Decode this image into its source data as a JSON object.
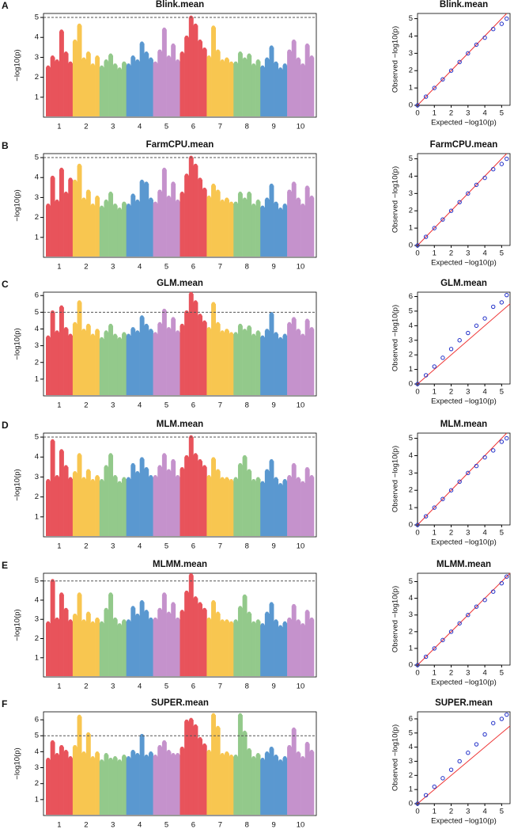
{
  "chart_data": [
    {
      "type": "manhattan",
      "panel": "A",
      "title": "Blink.mean",
      "ylabel": "−log10(p)",
      "ylim": [
        0,
        5.2
      ],
      "yticks": [
        1,
        2,
        3,
        4,
        5
      ],
      "threshold": 5,
      "categories": [
        "1",
        "2",
        "3",
        "4",
        "5",
        "6",
        "7",
        "8",
        "9",
        "10"
      ],
      "colors": [
        "#e8535b",
        "#f8c650",
        "#93c98b",
        "#5a98d0",
        "#c592cc",
        "#e8535b",
        "#f8c650",
        "#93c98b",
        "#5a98d0",
        "#c592cc"
      ],
      "values": [
        [
          2.5,
          3,
          2.8,
          4.3,
          3.2,
          2.7
        ],
        [
          3.8,
          4.6,
          2.9,
          3.2,
          2.6,
          3
        ],
        [
          2.5,
          2.8,
          3.1,
          2.6,
          2.4,
          2.7
        ],
        [
          2.6,
          3,
          2.8,
          3.7,
          3.2,
          2.9
        ],
        [
          2.7,
          3.3,
          4.4,
          3,
          3.6,
          2.8
        ],
        [
          3.2,
          4,
          5,
          4.6,
          3.8,
          3.4
        ],
        [
          3,
          4.5,
          3.3,
          2.8,
          2.9,
          2.7
        ],
        [
          2.7,
          3.2,
          2.9,
          3.1,
          2.6,
          2.8
        ],
        [
          2.5,
          2.9,
          3.5,
          2.7,
          2.4,
          2.6
        ],
        [
          3.3,
          3.8,
          2.9,
          2.6,
          3.6,
          3
        ]
      ]
    },
    {
      "type": "qq",
      "title": "Blink.mean",
      "xlabel": "Expected −log10(p)",
      "ylabel": "Observed −log10(p)",
      "xlim": [
        0,
        5.5
      ],
      "ylim": [
        0,
        5.3
      ],
      "xticks": [
        0,
        1,
        2,
        3,
        4,
        5
      ],
      "yticks": [
        0,
        1,
        2,
        3,
        4,
        5
      ],
      "x": [
        0,
        0.5,
        1,
        1.5,
        2,
        2.5,
        3,
        3.5,
        4,
        4.5,
        5,
        5.3
      ],
      "y": [
        0,
        0.5,
        1,
        1.5,
        2,
        2.5,
        3,
        3.5,
        3.9,
        4.4,
        4.7,
        5
      ]
    },
    {
      "type": "manhattan",
      "panel": "B",
      "title": "FarmCPU.mean",
      "ylabel": "−log10(p)",
      "ylim": [
        0,
        5.2
      ],
      "yticks": [
        1,
        2,
        3,
        4,
        5
      ],
      "threshold": 5,
      "categories": [
        "1",
        "2",
        "3",
        "4",
        "5",
        "6",
        "7",
        "8",
        "9",
        "10"
      ],
      "colors": [
        "#e8535b",
        "#f8c650",
        "#93c98b",
        "#5a98d0",
        "#c592cc",
        "#e8535b",
        "#f8c650",
        "#93c98b",
        "#5a98d0",
        "#c592cc"
      ],
      "values": [
        [
          2.6,
          4,
          2.8,
          4.4,
          3.2,
          3.9
        ],
        [
          3.8,
          4.6,
          2.9,
          3.3,
          2.6,
          3
        ],
        [
          2.5,
          2.8,
          3.2,
          2.6,
          2.4,
          2.7
        ],
        [
          2.6,
          3.1,
          2.8,
          3.8,
          3.7,
          2.9
        ],
        [
          2.7,
          3.3,
          4.4,
          3,
          3.7,
          2.8
        ],
        [
          3.2,
          4.1,
          5,
          4.6,
          3.9,
          3.4
        ],
        [
          3,
          3.6,
          3.3,
          2.8,
          2.9,
          2.7
        ],
        [
          2.7,
          3.2,
          2.9,
          3.2,
          2.6,
          2.8
        ],
        [
          2.5,
          2.9,
          3.6,
          2.7,
          2.4,
          2.6
        ],
        [
          3.3,
          3.7,
          2.9,
          2.6,
          3.5,
          3
        ]
      ]
    },
    {
      "type": "qq",
      "title": "FarmCPU.mean",
      "xlabel": "Expected −log10(p)",
      "ylabel": "Observed −log10(p)",
      "xlim": [
        0,
        5.5
      ],
      "ylim": [
        0,
        5.3
      ],
      "xticks": [
        0,
        1,
        2,
        3,
        4,
        5
      ],
      "yticks": [
        0,
        1,
        2,
        3,
        4,
        5
      ],
      "x": [
        0,
        0.5,
        1,
        1.5,
        2,
        2.5,
        3,
        3.5,
        4,
        4.5,
        5,
        5.3
      ],
      "y": [
        0,
        0.5,
        1,
        1.5,
        2,
        2.5,
        3,
        3.5,
        3.9,
        4.4,
        4.7,
        5
      ]
    },
    {
      "type": "manhattan",
      "panel": "C",
      "title": "GLM.mean",
      "ylabel": "−log10(p)",
      "ylim": [
        0,
        6.2
      ],
      "yticks": [
        1,
        2,
        3,
        4,
        5,
        6
      ],
      "threshold": 5,
      "categories": [
        "1",
        "2",
        "3",
        "4",
        "5",
        "6",
        "7",
        "8",
        "9",
        "10"
      ],
      "colors": [
        "#e8535b",
        "#f8c650",
        "#93c98b",
        "#5a98d0",
        "#c592cc",
        "#e8535b",
        "#f8c650",
        "#93c98b",
        "#5a98d0",
        "#c592cc"
      ],
      "values": [
        [
          3.5,
          5,
          3.8,
          5.3,
          4,
          3.6
        ],
        [
          4.3,
          5.6,
          3.9,
          4.2,
          3.6,
          3.9
        ],
        [
          3.4,
          3.8,
          4.2,
          3.6,
          3.4,
          3.7
        ],
        [
          3.6,
          4,
          3.8,
          4.7,
          4.2,
          3.9
        ],
        [
          3.7,
          4.3,
          5.1,
          4,
          4.6,
          3.8
        ],
        [
          4.2,
          5,
          6.1,
          5.6,
          4.8,
          4.4
        ],
        [
          4,
          5.5,
          4.3,
          3.8,
          3.9,
          3.7
        ],
        [
          3.7,
          4.2,
          3.9,
          4.1,
          3.6,
          3.8
        ],
        [
          3.5,
          3.9,
          4.9,
          3.7,
          3.4,
          3.6
        ],
        [
          4.3,
          4.6,
          3.9,
          3.6,
          4.5,
          4
        ]
      ]
    },
    {
      "type": "qq",
      "title": "GLM.mean",
      "xlabel": "Expected −log10(p)",
      "ylabel": "Observed −log10(p)",
      "xlim": [
        0,
        5.5
      ],
      "ylim": [
        0,
        6.3
      ],
      "xticks": [
        0,
        1,
        2,
        3,
        4,
        5
      ],
      "yticks": [
        0,
        1,
        2,
        3,
        4,
        5,
        6
      ],
      "x": [
        0,
        0.5,
        1,
        1.5,
        2,
        2.5,
        3,
        3.5,
        4,
        4.5,
        5,
        5.3
      ],
      "y": [
        0,
        0.6,
        1.2,
        1.8,
        2.4,
        3,
        3.5,
        4,
        4.5,
        5.3,
        5.6,
        6.1
      ]
    },
    {
      "type": "manhattan",
      "panel": "D",
      "title": "MLM.mean",
      "ylabel": "−log10(p)",
      "ylim": [
        0,
        5.2
      ],
      "yticks": [
        1,
        2,
        3,
        4,
        5
      ],
      "threshold": 5,
      "categories": [
        "1",
        "2",
        "3",
        "4",
        "5",
        "6",
        "7",
        "8",
        "9",
        "10"
      ],
      "colors": [
        "#e8535b",
        "#f8c650",
        "#93c98b",
        "#5a98d0",
        "#c592cc",
        "#e8535b",
        "#f8c650",
        "#93c98b",
        "#5a98d0",
        "#c592cc"
      ],
      "values": [
        [
          2.8,
          4.8,
          3,
          4.3,
          3.5,
          2.9
        ],
        [
          3.2,
          4.1,
          2.9,
          3.3,
          2.8,
          3
        ],
        [
          2.8,
          3.5,
          4.1,
          3,
          2.7,
          2.9
        ],
        [
          2.9,
          3.6,
          3.2,
          3.9,
          3.4,
          3
        ],
        [
          3,
          3.5,
          4.1,
          3.3,
          3.8,
          3
        ],
        [
          3.4,
          4,
          5,
          4.1,
          3.8,
          3.5
        ],
        [
          3,
          3.9,
          3.3,
          2.9,
          2.9,
          2.8
        ],
        [
          2.9,
          3.6,
          4,
          3.3,
          2.8,
          2.9
        ],
        [
          2.7,
          3.3,
          3.8,
          2.9,
          2.6,
          2.8
        ],
        [
          3,
          3.6,
          2.9,
          2.7,
          3.4,
          3
        ]
      ]
    },
    {
      "type": "qq",
      "title": "MLM.mean",
      "xlabel": "Expected −log10(p)",
      "ylabel": "Observed −log10(p)",
      "xlim": [
        0,
        5.5
      ],
      "ylim": [
        0,
        5.3
      ],
      "xticks": [
        0,
        1,
        2,
        3,
        4,
        5
      ],
      "yticks": [
        0,
        1,
        2,
        3,
        4,
        5
      ],
      "x": [
        0,
        0.5,
        1,
        1.5,
        2,
        2.5,
        3,
        3.5,
        4,
        4.5,
        5,
        5.3
      ],
      "y": [
        0,
        0.5,
        1,
        1.5,
        2,
        2.5,
        3,
        3.4,
        3.9,
        4.3,
        4.8,
        5
      ]
    },
    {
      "type": "manhattan",
      "panel": "E",
      "title": "MLMM.mean",
      "ylabel": "−log10(p)",
      "ylim": [
        0,
        5.4
      ],
      "yticks": [
        1,
        2,
        3,
        4,
        5
      ],
      "threshold": 5,
      "categories": [
        "1",
        "2",
        "3",
        "4",
        "5",
        "6",
        "7",
        "8",
        "9",
        "10"
      ],
      "colors": [
        "#e8535b",
        "#f8c650",
        "#93c98b",
        "#5a98d0",
        "#c592cc",
        "#e8535b",
        "#f8c650",
        "#93c98b",
        "#5a98d0",
        "#c592cc"
      ],
      "values": [
        [
          2.8,
          5,
          3,
          4.3,
          3.5,
          2.9
        ],
        [
          3.2,
          4.3,
          2.9,
          3.3,
          2.8,
          3
        ],
        [
          2.8,
          3.5,
          4.3,
          3,
          2.7,
          2.9
        ],
        [
          2.9,
          3.6,
          3.2,
          3.9,
          3.4,
          3
        ],
        [
          3,
          3.5,
          4.3,
          3.3,
          3.8,
          3
        ],
        [
          3.4,
          4.4,
          5.3,
          4.1,
          3.8,
          3.5
        ],
        [
          3,
          3.9,
          3.3,
          2.9,
          2.9,
          2.8
        ],
        [
          2.9,
          3.6,
          4.2,
          3.3,
          2.8,
          2.9
        ],
        [
          2.7,
          3.3,
          3.8,
          2.9,
          2.6,
          2.8
        ],
        [
          3,
          3.7,
          2.9,
          2.7,
          3.4,
          3
        ]
      ]
    },
    {
      "type": "qq",
      "title": "MLMM.mean",
      "xlabel": "Expected −log10(p)",
      "ylabel": "Observed −log10(p)",
      "xlim": [
        0,
        5.5
      ],
      "ylim": [
        0,
        5.5
      ],
      "xticks": [
        0,
        1,
        2,
        3,
        4,
        5
      ],
      "yticks": [
        0,
        1,
        2,
        3,
        4,
        5
      ],
      "x": [
        0,
        0.5,
        1,
        1.5,
        2,
        2.5,
        3,
        3.5,
        4,
        4.5,
        5,
        5.3
      ],
      "y": [
        0,
        0.5,
        1,
        1.5,
        2,
        2.5,
        3,
        3.5,
        3.9,
        4.4,
        4.9,
        5.3
      ]
    },
    {
      "type": "manhattan",
      "panel": "F",
      "title": "SUPER.mean",
      "ylabel": "−log10(p)",
      "ylim": [
        0,
        6.5
      ],
      "yticks": [
        1,
        2,
        3,
        4,
        5,
        6
      ],
      "threshold": 5,
      "categories": [
        "1",
        "2",
        "3",
        "4",
        "5",
        "6",
        "7",
        "8",
        "9",
        "10"
      ],
      "colors": [
        "#e8535b",
        "#f8c650",
        "#93c98b",
        "#5a98d0",
        "#c592cc",
        "#e8535b",
        "#f8c650",
        "#93c98b",
        "#5a98d0",
        "#c592cc"
      ],
      "values": [
        [
          3.5,
          4.6,
          3.8,
          4.3,
          4,
          3.6
        ],
        [
          4.3,
          6.2,
          3.9,
          5.1,
          3.6,
          3.9
        ],
        [
          3.4,
          3.8,
          3.5,
          3.6,
          3.4,
          3.7
        ],
        [
          3.6,
          4,
          3.8,
          5,
          3.7,
          3.9
        ],
        [
          3.7,
          4.3,
          4.6,
          4,
          3.8,
          3.8
        ],
        [
          4.2,
          5.9,
          6,
          5.6,
          4.8,
          4.4
        ],
        [
          4,
          6.3,
          5.5,
          3.8,
          3.9,
          3.7
        ],
        [
          3.7,
          6.3,
          5.2,
          4.1,
          3.6,
          3.8
        ],
        [
          3.5,
          3.9,
          4.2,
          3.7,
          3.4,
          3.6
        ],
        [
          4.3,
          5.4,
          3.9,
          3.6,
          4.5,
          4
        ]
      ]
    },
    {
      "type": "qq",
      "title": "SUPER.mean",
      "xlabel": "Expected −log10(p)",
      "ylabel": "Observed −log10(p)",
      "xlim": [
        0,
        5.5
      ],
      "ylim": [
        0,
        6.5
      ],
      "xticks": [
        0,
        1,
        2,
        3,
        4,
        5
      ],
      "yticks": [
        0,
        1,
        2,
        3,
        4,
        5,
        6
      ],
      "x": [
        0,
        0.5,
        1,
        1.5,
        2,
        2.5,
        3,
        3.5,
        4,
        4.5,
        5,
        5.3
      ],
      "y": [
        0,
        0.6,
        1.2,
        1.8,
        2.4,
        3,
        3.6,
        4.2,
        4.9,
        5.7,
        6,
        6.3
      ]
    }
  ]
}
